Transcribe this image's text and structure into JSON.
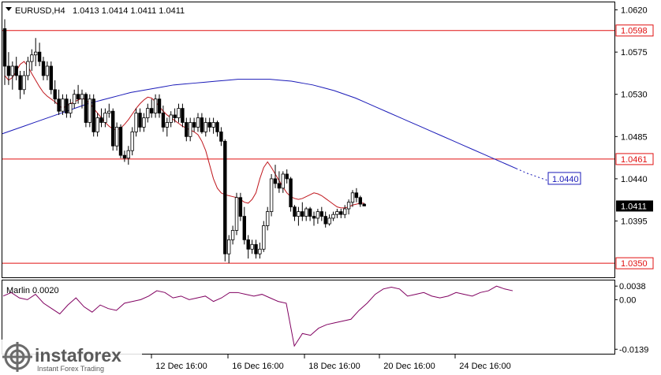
{
  "header": {
    "symbol": "EURUSD,H4",
    "ohlc": "1.0413 1.0414 1.0411 1.0411"
  },
  "indicator": {
    "label": "Marlin 0.0020",
    "ticks": [
      {
        "v": 0.0038,
        "label": "0.0038"
      },
      {
        "v": 0.0,
        "label": "0.00"
      },
      {
        "v": -0.0139,
        "label": "-0.0139"
      }
    ]
  },
  "watermark": {
    "brand": "instaforex",
    "tagline": "Instant Forex Trading"
  },
  "colors": {
    "candle": "#000000",
    "ma_red": "#c0181e",
    "ma_blue": "#1a1ab8",
    "level_line": "#e01010",
    "level_label_bg": "#ffffff",
    "current_label_bg": "#000000",
    "osc": "#800060",
    "axis": "#000000"
  },
  "chart_data": {
    "type": "candlestick",
    "y_range": [
      1.0335,
      1.0628
    ],
    "y_ticks": [
      {
        "v": 1.062,
        "label": "1.0620"
      },
      {
        "v": 1.0575,
        "label": "1.0575"
      },
      {
        "v": 1.053,
        "label": "1.0530"
      },
      {
        "v": 1.0485,
        "label": "1.0485"
      },
      {
        "v": 1.044,
        "label": "1.0440"
      },
      {
        "v": 1.0395,
        "label": "1.0395"
      }
    ],
    "x_labels": [
      "12 Dec 16:00",
      "16 Dec 16:00",
      "18 Dec 16:00",
      "20 Dec 16:00",
      "24 Dec 16:00"
    ],
    "levels": [
      {
        "v": 1.0598,
        "label": "1.0598"
      },
      {
        "v": 1.0461,
        "label": "1.0461"
      },
      {
        "v": 1.035,
        "label": "1.0350"
      }
    ],
    "current_price": {
      "v": 1.0411,
      "label": "1.0411"
    },
    "blue_ma_target": {
      "v": 1.044,
      "label": "1.0440"
    },
    "candles": [
      [
        1.06,
        1.061,
        1.054,
        1.056
      ],
      [
        1.056,
        1.0575,
        1.054,
        1.055
      ],
      [
        1.055,
        1.0565,
        1.0535,
        1.056
      ],
      [
        1.056,
        1.057,
        1.0545,
        1.055
      ],
      [
        1.055,
        1.0555,
        1.0525,
        1.0535
      ],
      [
        1.0535,
        1.0555,
        1.053,
        1.055
      ],
      [
        1.055,
        1.057,
        1.0545,
        1.0565
      ],
      [
        1.0565,
        1.0578,
        1.0555,
        1.0572
      ],
      [
        1.0572,
        1.059,
        1.056,
        1.0575
      ],
      [
        1.0575,
        1.0585,
        1.056,
        1.0565
      ],
      [
        1.0565,
        1.057,
        1.0545,
        1.055
      ],
      [
        1.055,
        1.0565,
        1.0545,
        1.056
      ],
      [
        1.056,
        1.0565,
        1.053,
        1.0535
      ],
      [
        1.0535,
        1.0545,
        1.052,
        1.0525
      ],
      [
        1.0525,
        1.0535,
        1.0508,
        1.0512
      ],
      [
        1.0512,
        1.053,
        1.0508,
        1.0525
      ],
      [
        1.0525,
        1.053,
        1.0505,
        1.051
      ],
      [
        1.051,
        1.0525,
        1.0505,
        1.052
      ],
      [
        1.052,
        1.0535,
        1.0515,
        1.053
      ],
      [
        1.053,
        1.054,
        1.052,
        1.0525
      ],
      [
        1.0525,
        1.0535,
        1.0515,
        1.053
      ],
      [
        1.053,
        1.0532,
        1.0495,
        1.05
      ],
      [
        1.05,
        1.053,
        1.0495,
        1.0525
      ],
      [
        1.0525,
        1.053,
        1.0485,
        1.049
      ],
      [
        1.049,
        1.051,
        1.0485,
        1.0505
      ],
      [
        1.0505,
        1.0515,
        1.0495,
        1.05
      ],
      [
        1.05,
        1.0515,
        1.0495,
        1.051
      ],
      [
        1.051,
        1.052,
        1.0505,
        1.0512
      ],
      [
        1.0512,
        1.0515,
        1.047,
        1.0475
      ],
      [
        1.0475,
        1.05,
        1.047,
        1.0495
      ],
      [
        1.0495,
        1.0498,
        1.0462,
        1.0465
      ],
      [
        1.0465,
        1.047,
        1.0458,
        1.0462
      ],
      [
        1.0462,
        1.0475,
        1.0455,
        1.047
      ],
      [
        1.047,
        1.0495,
        1.0465,
        1.049
      ],
      [
        1.049,
        1.0515,
        1.0485,
        1.051
      ],
      [
        1.051,
        1.0515,
        1.049,
        1.0495
      ],
      [
        1.0495,
        1.051,
        1.049,
        1.0505
      ],
      [
        1.0505,
        1.052,
        1.05,
        1.0515
      ],
      [
        1.0515,
        1.0525,
        1.0505,
        1.051
      ],
      [
        1.051,
        1.053,
        1.0505,
        1.0525
      ],
      [
        1.0525,
        1.053,
        1.0505,
        1.051
      ],
      [
        1.051,
        1.0518,
        1.049,
        1.0495
      ],
      [
        1.0495,
        1.0505,
        1.0485,
        1.05
      ],
      [
        1.05,
        1.0512,
        1.0495,
        1.0508
      ],
      [
        1.0508,
        1.0515,
        1.05,
        1.0505
      ],
      [
        1.0505,
        1.052,
        1.05,
        1.0515
      ],
      [
        1.0515,
        1.052,
        1.0495,
        1.05
      ],
      [
        1.05,
        1.0505,
        1.048,
        1.0485
      ],
      [
        1.0485,
        1.0505,
        1.048,
        1.05
      ],
      [
        1.05,
        1.0505,
        1.049,
        1.0495
      ],
      [
        1.0495,
        1.051,
        1.049,
        1.0505
      ],
      [
        1.0505,
        1.051,
        1.0488,
        1.049
      ],
      [
        1.049,
        1.0505,
        1.0485,
        1.05
      ],
      [
        1.05,
        1.0505,
        1.049,
        1.0495
      ],
      [
        1.0495,
        1.0505,
        1.0488,
        1.05
      ],
      [
        1.05,
        1.0502,
        1.0485,
        1.049
      ],
      [
        1.049,
        1.0495,
        1.0475,
        1.048
      ],
      [
        1.048,
        1.0482,
        1.0352,
        1.036
      ],
      [
        1.036,
        1.038,
        1.035,
        1.0375
      ],
      [
        1.0375,
        1.039,
        1.037,
        1.0385
      ],
      [
        1.0385,
        1.0425,
        1.038,
        1.042
      ],
      [
        1.042,
        1.0425,
        1.0395,
        1.04
      ],
      [
        1.04,
        1.041,
        1.037,
        1.0375
      ],
      [
        1.0375,
        1.038,
        1.0355,
        1.0365
      ],
      [
        1.0365,
        1.0375,
        1.036,
        1.037
      ],
      [
        1.037,
        1.0375,
        1.0355,
        1.036
      ],
      [
        1.036,
        1.0372,
        1.0355,
        1.0365
      ],
      [
        1.0365,
        1.0395,
        1.0362,
        1.039
      ],
      [
        1.039,
        1.041,
        1.0385,
        1.0405
      ],
      [
        1.0405,
        1.0445,
        1.04,
        1.044
      ],
      [
        1.044,
        1.0455,
        1.043,
        1.0435
      ],
      [
        1.0435,
        1.0448,
        1.0425,
        1.043
      ],
      [
        1.043,
        1.0448,
        1.0425,
        1.0445
      ],
      [
        1.0445,
        1.045,
        1.0435,
        1.044
      ],
      [
        1.044,
        1.0442,
        1.0405,
        1.041
      ],
      [
        1.041,
        1.0412,
        1.0395,
        1.04
      ],
      [
        1.04,
        1.041,
        1.039,
        1.0405
      ],
      [
        1.0405,
        1.0415,
        1.0395,
        1.04
      ],
      [
        1.04,
        1.041,
        1.0395,
        1.0408
      ],
      [
        1.0408,
        1.041,
        1.0395,
        1.04
      ],
      [
        1.04,
        1.0405,
        1.039,
        1.0398
      ],
      [
        1.0398,
        1.0408,
        1.0392,
        1.0405
      ],
      [
        1.0405,
        1.041,
        1.0395,
        1.04
      ],
      [
        1.04,
        1.0405,
        1.0388,
        1.0392
      ],
      [
        1.0392,
        1.0402,
        1.039,
        1.0398
      ],
      [
        1.0398,
        1.0405,
        1.0395,
        1.0402
      ],
      [
        1.0402,
        1.0408,
        1.0398,
        1.0405
      ],
      [
        1.0405,
        1.0408,
        1.0398,
        1.0402
      ],
      [
        1.0402,
        1.0412,
        1.0398,
        1.0408
      ],
      [
        1.0408,
        1.0418,
        1.0402,
        1.0415
      ],
      [
        1.0415,
        1.0428,
        1.041,
        1.0425
      ],
      [
        1.0425,
        1.043,
        1.0415,
        1.042
      ],
      [
        1.042,
        1.0422,
        1.041,
        1.0413
      ],
      [
        1.0413,
        1.0414,
        1.0411,
        1.0411
      ]
    ],
    "red_ma": [
      1.055,
      1.0545,
      1.0548,
      1.0555,
      1.0562,
      1.0565,
      1.056,
      1.0552,
      1.0545,
      1.0538,
      1.0532,
      1.0528,
      1.0525,
      1.0522,
      1.0518,
      1.0515,
      1.0518,
      1.052,
      1.0522,
      1.0524,
      1.0526,
      1.0524,
      1.052,
      1.0515,
      1.051,
      1.0505,
      1.05,
      1.0496,
      1.0493,
      1.0492,
      1.0494,
      1.0498,
      1.0503,
      1.0509,
      1.0515,
      1.052,
      1.0524,
      1.0527,
      1.0526,
      1.0522,
      1.0517,
      1.0512,
      1.0508,
      1.0505,
      1.0502,
      1.0499,
      1.0496,
      1.0494,
      1.0492,
      1.049,
      1.0487,
      1.048,
      1.047,
      1.0455,
      1.044,
      1.043,
      1.0425,
      1.0423,
      1.0422,
      1.0421,
      1.042,
      1.0418,
      1.0415,
      1.0414,
      1.0418,
      1.0425,
      1.044,
      1.0452,
      1.0458,
      1.0452,
      1.0445,
      1.0438,
      1.0431,
      1.0425,
      1.0421,
      1.0419,
      1.0418,
      1.0419,
      1.0421,
      1.0423,
      1.0425,
      1.0424,
      1.0422,
      1.0419,
      1.0416,
      1.0413,
      1.041,
      1.0409,
      1.0409,
      1.041,
      1.0412,
      1.0413,
      1.0414,
      1.0414
    ],
    "blue_ma": [
      1.0488,
      1.0492,
      1.0496,
      1.05,
      1.0504,
      1.0508,
      1.0512,
      1.0516,
      1.052,
      1.0523,
      1.0526,
      1.0529,
      1.0532,
      1.0534,
      1.0536,
      1.0538,
      1.054,
      1.0541,
      1.0542,
      1.0543,
      1.0544,
      1.0545,
      1.0546,
      1.0546,
      1.0546,
      1.0546,
      1.0545,
      1.0544,
      1.0542,
      1.054,
      1.0537,
      1.0534,
      1.053,
      1.0526,
      1.0521,
      1.0516,
      1.0511,
      1.0506,
      1.0501,
      1.0496,
      1.0491,
      1.0486,
      1.0481,
      1.0476,
      1.0471,
      1.0466,
      1.0461,
      1.0456,
      1.0451,
      1.0446,
      1.0442,
      1.0438
    ],
    "oscillator": [
      0.001,
      0.002,
      0.0005,
      0.0,
      0.0015,
      -0.001,
      -0.0025,
      -0.004,
      -0.0015,
      0.0005,
      -0.002,
      -0.0035,
      -0.0015,
      -0.0025,
      -0.003,
      -0.001,
      -0.0005,
      0.0,
      0.001,
      0.0025,
      0.002,
      0.0005,
      0.001,
      0.0,
      0.0005,
      0.001,
      -0.0005,
      0.0005,
      0.002,
      0.002,
      0.0015,
      0.001,
      0.0015,
      0.0005,
      -0.0005,
      -0.001,
      -0.013,
      -0.0095,
      -0.01,
      -0.008,
      -0.007,
      -0.0065,
      -0.006,
      -0.0055,
      -0.003,
      -0.001,
      0.0015,
      0.003,
      0.0035,
      0.003,
      0.001,
      0.0015,
      0.002,
      0.001,
      0.0005,
      0.001,
      0.002,
      0.0015,
      0.001,
      0.002,
      0.0025,
      0.0038,
      0.003,
      0.0025
    ]
  }
}
